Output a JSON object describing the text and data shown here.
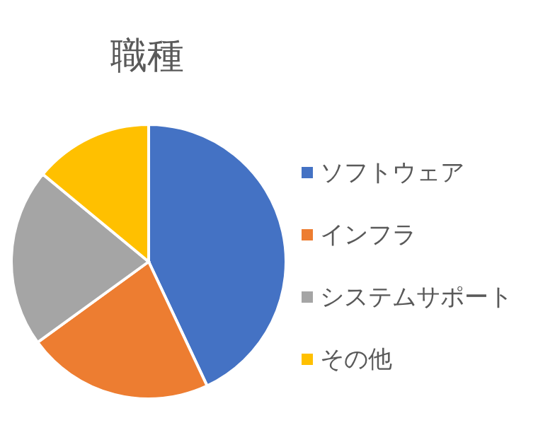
{
  "chart_data": {
    "type": "pie",
    "title": "職種",
    "categories": [
      "ソフトウェア",
      "インフラ",
      "システムサポート",
      "その他"
    ],
    "values": [
      43,
      22,
      21,
      14
    ],
    "colors": [
      "#4472c4",
      "#ed7d31",
      "#a5a5a5",
      "#ffc000"
    ],
    "legend": "right"
  }
}
